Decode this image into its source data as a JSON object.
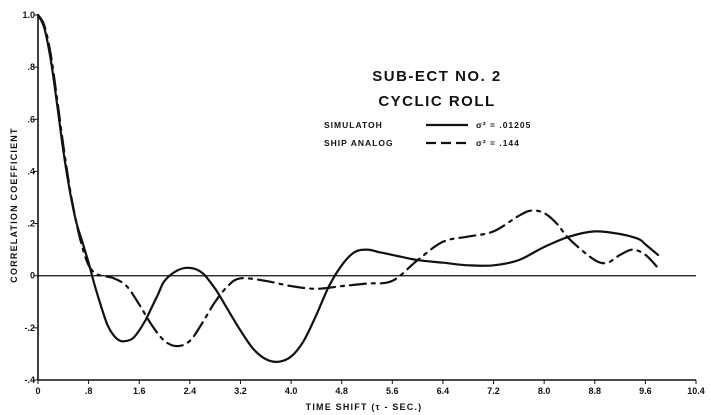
{
  "chart_data": {
    "type": "line",
    "title": "SUB-ECT NO. 2",
    "subtitle": "CYCLIC ROLL",
    "xlabel": "TIME SHIFT (τ - SEC.)",
    "ylabel": "CORRELATION COEFFICIENT",
    "xlim": [
      0,
      10.4
    ],
    "ylim": [
      -0.4,
      1.0
    ],
    "x_ticks": [
      {
        "value": 0,
        "label": "0"
      },
      {
        "value": 0.8,
        "label": ".8"
      },
      {
        "value": 1.6,
        "label": "1.6"
      },
      {
        "value": 2.4,
        "label": "2.4"
      },
      {
        "value": 3.2,
        "label": "3.2"
      },
      {
        "value": 4.0,
        "label": "4.0"
      },
      {
        "value": 4.8,
        "label": "4.8"
      },
      {
        "value": 5.6,
        "label": "5.6"
      },
      {
        "value": 6.4,
        "label": "6.4"
      },
      {
        "value": 7.2,
        "label": "7.2"
      },
      {
        "value": 8.0,
        "label": "8.0"
      },
      {
        "value": 8.8,
        "label": "8.8"
      },
      {
        "value": 9.6,
        "label": "9.6"
      },
      {
        "value": 10.4,
        "label": "10.4"
      }
    ],
    "y_ticks": [
      {
        "value": 1.0,
        "label": "1.0"
      },
      {
        "value": 0.8,
        "label": ".8"
      },
      {
        "value": 0.6,
        "label": ".6"
      },
      {
        "value": 0.4,
        "label": ".4"
      },
      {
        "value": 0.2,
        "label": ".2"
      },
      {
        "value": 0,
        "label": "0"
      },
      {
        "value": -0.2,
        "label": "-.2"
      },
      {
        "value": -0.4,
        "label": "-.4"
      }
    ],
    "grid": false,
    "legend_position": "top-right",
    "series": [
      {
        "name": "SIMULATOR",
        "legend_label": "SIMULATOH",
        "variance_label": "σ² = .01205",
        "style": "solid",
        "x": [
          0,
          0.1,
          0.2,
          0.3,
          0.4,
          0.5,
          0.6,
          0.7,
          0.8,
          0.9,
          1.0,
          1.1,
          1.2,
          1.3,
          1.4,
          1.5,
          1.6,
          1.7,
          1.8,
          1.9,
          2.0,
          2.2,
          2.4,
          2.6,
          2.8,
          3.0,
          3.2,
          3.4,
          3.6,
          3.8,
          4.0,
          4.2,
          4.4,
          4.6,
          4.8,
          5.0,
          5.2,
          5.4,
          5.6,
          6.0,
          6.4,
          6.8,
          7.2,
          7.6,
          8.0,
          8.4,
          8.8,
          9.2,
          9.5,
          9.6,
          9.8
        ],
        "y": [
          1.0,
          0.95,
          0.83,
          0.66,
          0.48,
          0.33,
          0.21,
          0.13,
          0.05,
          -0.04,
          -0.12,
          -0.19,
          -0.23,
          -0.25,
          -0.25,
          -0.24,
          -0.21,
          -0.17,
          -0.12,
          -0.07,
          -0.02,
          0.02,
          0.03,
          0.01,
          -0.05,
          -0.13,
          -0.21,
          -0.28,
          -0.32,
          -0.33,
          -0.31,
          -0.25,
          -0.15,
          -0.04,
          0.04,
          0.09,
          0.1,
          0.09,
          0.08,
          0.06,
          0.05,
          0.04,
          0.04,
          0.06,
          0.11,
          0.15,
          0.17,
          0.16,
          0.14,
          0.12,
          0.08
        ]
      },
      {
        "name": "SHIP ANALOG",
        "legend_label": "SHIP ANALOG",
        "variance_label": "σ² = .144",
        "style": "dashed",
        "x": [
          0,
          0.1,
          0.2,
          0.3,
          0.4,
          0.5,
          0.6,
          0.7,
          0.8,
          0.9,
          1.0,
          1.2,
          1.4,
          1.6,
          1.8,
          2.0,
          2.2,
          2.4,
          2.6,
          2.8,
          3.0,
          3.2,
          3.6,
          4.0,
          4.4,
          4.8,
          5.2,
          5.6,
          6.0,
          6.4,
          6.8,
          7.2,
          7.6,
          7.8,
          8.0,
          8.2,
          8.4,
          8.8,
          9.0,
          9.2,
          9.4,
          9.6,
          9.8
        ],
        "y": [
          1.0,
          0.96,
          0.85,
          0.68,
          0.5,
          0.34,
          0.21,
          0.11,
          0.04,
          0.01,
          0.0,
          -0.01,
          -0.04,
          -0.11,
          -0.19,
          -0.25,
          -0.27,
          -0.25,
          -0.18,
          -0.1,
          -0.04,
          -0.01,
          -0.02,
          -0.04,
          -0.05,
          -0.04,
          -0.03,
          -0.02,
          0.06,
          0.13,
          0.15,
          0.17,
          0.23,
          0.25,
          0.24,
          0.2,
          0.14,
          0.06,
          0.05,
          0.08,
          0.1,
          0.08,
          0.03
        ]
      }
    ]
  }
}
